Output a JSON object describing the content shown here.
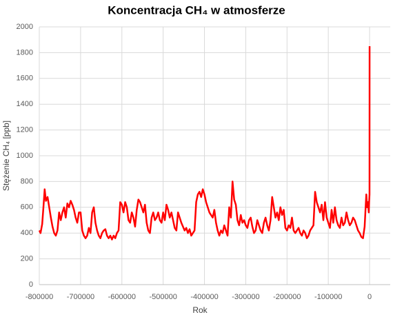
{
  "chart_data": {
    "type": "line",
    "title": "Koncentracja CH₄ w atmosferze",
    "x_label": "Rok",
    "y_label": "Stężenie CH₄ [ppb]",
    "x": [
      -800000,
      -797000,
      -793000,
      -790000,
      -787000,
      -784000,
      -780000,
      -776000,
      -772000,
      -768000,
      -764000,
      -760000,
      -756000,
      -752000,
      -748000,
      -744000,
      -740000,
      -736000,
      -732000,
      -728000,
      -724000,
      -720000,
      -716000,
      -712000,
      -708000,
      -704000,
      -700000,
      -696000,
      -692000,
      -688000,
      -684000,
      -680000,
      -676000,
      -672000,
      -668000,
      -664000,
      -660000,
      -656000,
      -652000,
      -648000,
      -644000,
      -640000,
      -636000,
      -632000,
      -628000,
      -624000,
      -620000,
      -616000,
      -612000,
      -608000,
      -604000,
      -600000,
      -596000,
      -592000,
      -588000,
      -584000,
      -580000,
      -576000,
      -572000,
      -568000,
      -564000,
      -560000,
      -556000,
      -552000,
      -548000,
      -544000,
      -540000,
      -536000,
      -532000,
      -528000,
      -524000,
      -520000,
      -516000,
      -512000,
      -508000,
      -504000,
      -500000,
      -496000,
      -492000,
      -488000,
      -484000,
      -480000,
      -476000,
      -472000,
      -468000,
      -464000,
      -460000,
      -456000,
      -452000,
      -448000,
      -444000,
      -440000,
      -436000,
      -432000,
      -428000,
      -424000,
      -420000,
      -416000,
      -412000,
      -408000,
      -404000,
      -400000,
      -396000,
      -392000,
      -388000,
      -384000,
      -380000,
      -376000,
      -372000,
      -368000,
      -364000,
      -360000,
      -356000,
      -352000,
      -348000,
      -344000,
      -340000,
      -336000,
      -332000,
      -328000,
      -324000,
      -320000,
      -316000,
      -312000,
      -308000,
      -304000,
      -300000,
      -296000,
      -292000,
      -288000,
      -284000,
      -280000,
      -276000,
      -272000,
      -268000,
      -264000,
      -260000,
      -256000,
      -252000,
      -248000,
      -244000,
      -240000,
      -236000,
      -232000,
      -228000,
      -224000,
      -220000,
      -216000,
      -212000,
      -208000,
      -204000,
      -200000,
      -196000,
      -192000,
      -188000,
      -184000,
      -180000,
      -176000,
      -172000,
      -168000,
      -164000,
      -160000,
      -156000,
      -152000,
      -148000,
      -144000,
      -140000,
      -136000,
      -132000,
      -128000,
      -124000,
      -120000,
      -116000,
      -112000,
      -108000,
      -104000,
      -100000,
      -96000,
      -92000,
      -88000,
      -84000,
      -80000,
      -76000,
      -72000,
      -68000,
      -64000,
      -60000,
      -56000,
      -52000,
      -48000,
      -44000,
      -40000,
      -36000,
      -32000,
      -28000,
      -24000,
      -20000,
      -16000,
      -12000,
      -8000,
      -6000,
      -4000,
      -2000,
      -1000,
      -200,
      0
    ],
    "series": [
      {
        "name": "CH₄",
        "color": "#ff0000",
        "values": [
          420,
          400,
          470,
          600,
          740,
          650,
          680,
          600,
          520,
          450,
          400,
          380,
          420,
          560,
          500,
          560,
          600,
          520,
          630,
          600,
          650,
          620,
          580,
          520,
          480,
          560,
          560,
          420,
          380,
          360,
          380,
          440,
          400,
          560,
          600,
          480,
          420,
          380,
          360,
          400,
          420,
          430,
          380,
          360,
          380,
          350,
          380,
          360,
          400,
          420,
          640,
          620,
          560,
          640,
          600,
          500,
          480,
          560,
          520,
          450,
          580,
          660,
          640,
          600,
          560,
          620,
          480,
          420,
          400,
          520,
          560,
          500,
          520,
          560,
          500,
          480,
          560,
          500,
          620,
          580,
          520,
          560,
          500,
          440,
          420,
          560,
          520,
          480,
          450,
          420,
          440,
          400,
          430,
          380,
          400,
          420,
          640,
          700,
          720,
          680,
          740,
          700,
          640,
          600,
          560,
          540,
          520,
          580,
          480,
          420,
          380,
          420,
          400,
          460,
          420,
          380,
          600,
          520,
          800,
          660,
          620,
          500,
          460,
          540,
          480,
          500,
          460,
          440,
          500,
          520,
          450,
          400,
          420,
          500,
          460,
          420,
          400,
          480,
          520,
          460,
          420,
          500,
          680,
          600,
          520,
          560,
          500,
          600,
          540,
          580,
          440,
          420,
          460,
          440,
          520,
          420,
          400,
          420,
          440,
          400,
          380,
          420,
          400,
          360,
          380,
          420,
          440,
          460,
          720,
          640,
          600,
          560,
          620,
          500,
          640,
          520,
          480,
          440,
          580,
          480,
          600,
          500,
          460,
          440,
          520,
          460,
          480,
          560,
          500,
          460,
          480,
          520,
          500,
          460,
          420,
          400,
          370,
          360,
          450,
          700,
          600,
          640,
          560,
          650,
          700,
          1850
        ]
      }
    ],
    "xlim": [
      -800000,
      50000
    ],
    "xticks": [
      -800000,
      -700000,
      -600000,
      -500000,
      -400000,
      -300000,
      -200000,
      -100000,
      0
    ],
    "ylim": [
      0,
      2000
    ],
    "yticks": [
      0,
      200,
      400,
      600,
      800,
      1000,
      1200,
      1400,
      1600,
      1800,
      2000
    ],
    "grid": true
  }
}
